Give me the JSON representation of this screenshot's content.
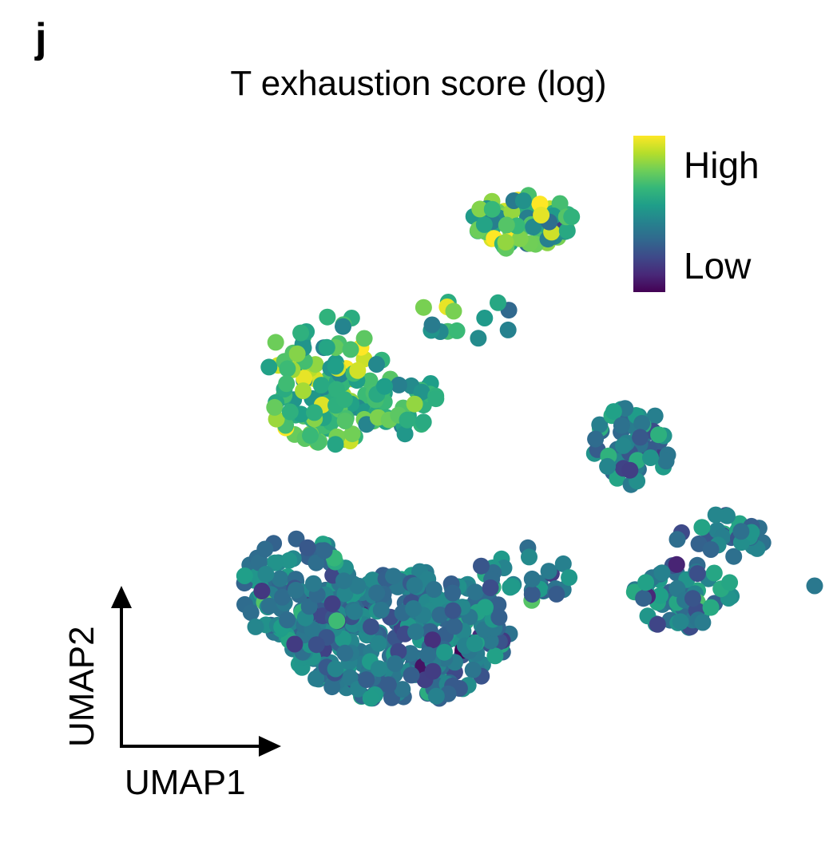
{
  "panel_label": "j",
  "chart_data": {
    "type": "scatter",
    "title": "T exhaustion score (log)",
    "xlabel": "UMAP1",
    "ylabel": "UMAP2",
    "color_scale": {
      "name": "viridis",
      "high_label": "High",
      "low_label": "Low",
      "stops": [
        "#440154",
        "#482878",
        "#3e4989",
        "#31688e",
        "#26828e",
        "#1f9e89",
        "#35b779",
        "#6ece58",
        "#b5de2b",
        "#fde725"
      ]
    },
    "clusters": [
      {
        "cx": 0.26,
        "cy": 0.6,
        "rx": 0.1,
        "ry": 0.12,
        "n": 130,
        "score_mean": 0.68,
        "score_sd": 0.14
      },
      {
        "cx": 0.38,
        "cy": 0.56,
        "rx": 0.05,
        "ry": 0.06,
        "n": 30,
        "score_mean": 0.62,
        "score_sd": 0.12
      },
      {
        "cx": 0.56,
        "cy": 0.88,
        "rx": 0.08,
        "ry": 0.05,
        "n": 80,
        "score_mean": 0.72,
        "score_sd": 0.15
      },
      {
        "cx": 0.37,
        "cy": 0.14,
        "rx": 0.17,
        "ry": 0.12,
        "n": 330,
        "score_mean": 0.4,
        "score_sd": 0.11
      },
      {
        "cx": 0.22,
        "cy": 0.22,
        "rx": 0.09,
        "ry": 0.1,
        "n": 110,
        "score_mean": 0.42,
        "score_sd": 0.11
      },
      {
        "cx": 0.72,
        "cy": 0.48,
        "rx": 0.06,
        "ry": 0.07,
        "n": 60,
        "score_mean": 0.43,
        "score_sd": 0.12
      },
      {
        "cx": 0.8,
        "cy": 0.21,
        "rx": 0.08,
        "ry": 0.06,
        "n": 60,
        "score_mean": 0.45,
        "score_sd": 0.13
      },
      {
        "cx": 0.86,
        "cy": 0.32,
        "rx": 0.07,
        "ry": 0.04,
        "n": 30,
        "score_mean": 0.4,
        "score_sd": 0.12
      },
      {
        "cx": 0.56,
        "cy": 0.25,
        "rx": 0.07,
        "ry": 0.05,
        "n": 30,
        "score_mean": 0.42,
        "score_sd": 0.12
      },
      {
        "cx": 0.47,
        "cy": 0.72,
        "rx": 0.08,
        "ry": 0.06,
        "n": 14,
        "score_mean": 0.62,
        "score_sd": 0.12
      }
    ],
    "outliers": [
      {
        "x": 1.0,
        "y": 0.23,
        "score": 0.4
      }
    ],
    "seed": 7
  },
  "arrows": {
    "x_label": "UMAP1",
    "y_label": "UMAP2"
  }
}
